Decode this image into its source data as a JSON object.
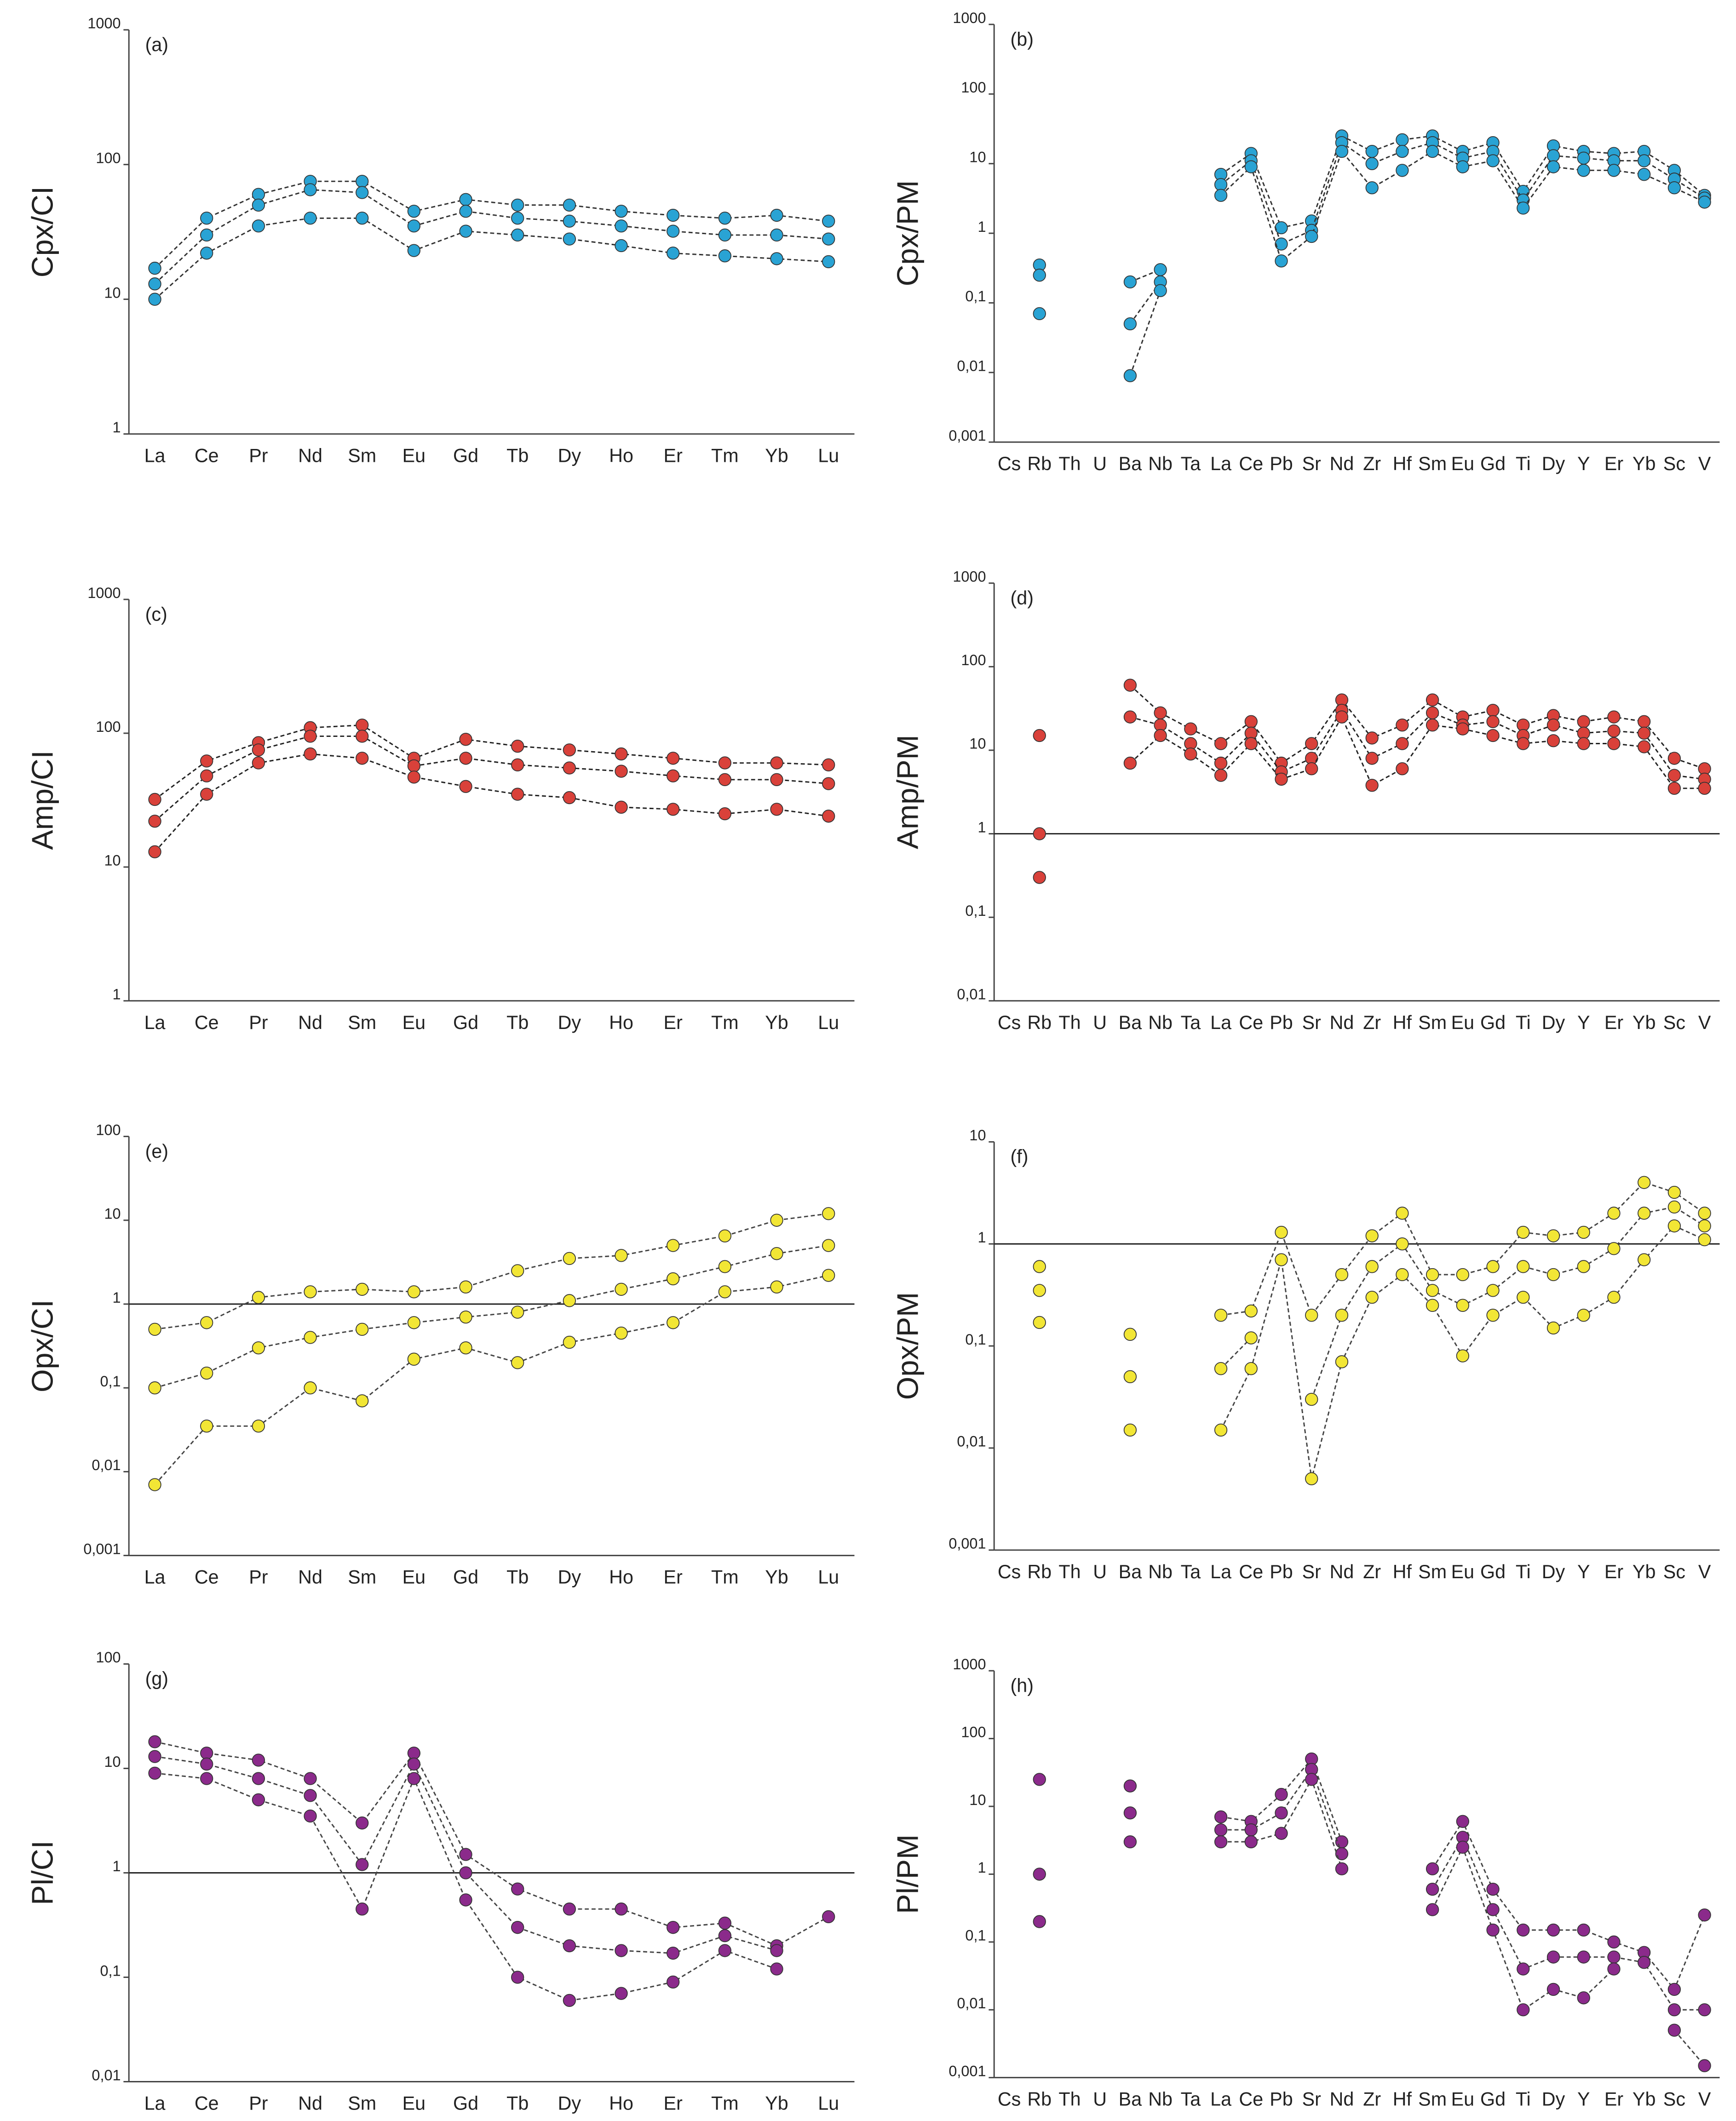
{
  "chart_data": [
    {
      "type": "line",
      "panel_label": "(a)",
      "y_label": "Cpx/CI",
      "log_scale": true,
      "color": "#29a3d4",
      "line_color": "#333333",
      "categories": [
        "La",
        "Ce",
        "Pr",
        "Nd",
        "Sm",
        "Eu",
        "Gd",
        "Tb",
        "Dy",
        "Ho",
        "Er",
        "Tm",
        "Yb",
        "Lu"
      ],
      "ylim": [
        1,
        1000
      ],
      "yticks": [
        1,
        10,
        100,
        1000
      ],
      "series": [
        {
          "color": "#29a3d4",
          "values": [
            17,
            40,
            60,
            75,
            75,
            45,
            55,
            50,
            50,
            45,
            42,
            40,
            42,
            38
          ]
        },
        {
          "color": "#29a3d4",
          "values": [
            13,
            30,
            50,
            65,
            62,
            35,
            45,
            40,
            38,
            35,
            32,
            30,
            30,
            28
          ]
        },
        {
          "color": "#29a3d4",
          "values": [
            10,
            22,
            35,
            40,
            40,
            23,
            32,
            30,
            28,
            25,
            22,
            21,
            20,
            19
          ]
        }
      ]
    },
    {
      "type": "line",
      "panel_label": "(b)",
      "y_label": "Cpx/PM",
      "log_scale": true,
      "color": "#29a3d4",
      "line_color": "#333333",
      "categories": [
        "Cs",
        "Rb",
        "Th",
        "U",
        "Ba",
        "Nb",
        "Ta",
        "La",
        "Ce",
        "Pb",
        "Sr",
        "Nd",
        "Zr",
        "Hf",
        "Sm",
        "Eu",
        "Gd",
        "Ti",
        "Dy",
        "Y",
        "Er",
        "Yb",
        "Sc",
        "V"
      ],
      "ylim": [
        0.001,
        1000
      ],
      "yticks": [
        {
          "value": 0.001,
          "label": "0,001"
        },
        {
          "value": 0.01,
          "label": "0,01"
        },
        {
          "value": 0.1,
          "label": "0,1"
        },
        1,
        10,
        100,
        1000
      ],
      "series": [
        {
          "color": "#29a3d4",
          "values": [
            null,
            0.35,
            null,
            null,
            0.2,
            0.3,
            null,
            7,
            14,
            1.2,
            1.5,
            25,
            15,
            22,
            25,
            15,
            20,
            4,
            18,
            15,
            14,
            15,
            8,
            3.5
          ]
        },
        {
          "color": "#29a3d4",
          "values": [
            null,
            0.25,
            null,
            null,
            0.05,
            0.2,
            null,
            5,
            11,
            0.7,
            1.1,
            20,
            10,
            15,
            20,
            12,
            15,
            3,
            13,
            12,
            11,
            11,
            6,
            3.2
          ]
        },
        {
          "color": "#29a3d4",
          "values": [
            null,
            0.07,
            null,
            null,
            0.009,
            0.15,
            null,
            3.5,
            9,
            0.4,
            0.9,
            15,
            4.5,
            8,
            15,
            9,
            11,
            2.3,
            9,
            8,
            8,
            7,
            4.5,
            2.8
          ]
        }
      ]
    },
    {
      "type": "line",
      "panel_label": "(c)",
      "y_label": "Amp/CI",
      "log_scale": true,
      "color": "#d9413a",
      "line_color": "#222222",
      "categories": [
        "La",
        "Ce",
        "Pr",
        "Nd",
        "Sm",
        "Eu",
        "Gd",
        "Tb",
        "Dy",
        "Ho",
        "Er",
        "Tm",
        "Yb",
        "Lu"
      ],
      "ylim": [
        1,
        1000
      ],
      "yticks": [
        1,
        10,
        100,
        1000
      ],
      "series": [
        {
          "color": "#d9413a",
          "values": [
            32,
            62,
            85,
            110,
            115,
            65,
            90,
            80,
            75,
            70,
            65,
            60,
            60,
            58
          ]
        },
        {
          "color": "#d9413a",
          "values": [
            22,
            48,
            75,
            95,
            95,
            57,
            65,
            58,
            55,
            52,
            48,
            45,
            45,
            42
          ]
        },
        {
          "color": "#d9413a",
          "values": [
            13,
            35,
            60,
            70,
            65,
            47,
            40,
            35,
            33,
            28,
            27,
            25,
            27,
            24
          ]
        }
      ]
    },
    {
      "type": "line",
      "panel_label": "(d)",
      "y_label": "Amp/PM",
      "log_scale": true,
      "color": "#d9413a",
      "line_color": "#222222",
      "hline": 1,
      "categories": [
        "Cs",
        "Rb",
        "Th",
        "U",
        "Ba",
        "Nb",
        "Ta",
        "La",
        "Ce",
        "Pb",
        "Sr",
        "Nd",
        "Zr",
        "Hf",
        "Sm",
        "Eu",
        "Gd",
        "Ti",
        "Dy",
        "Y",
        "Er",
        "Yb",
        "Sc",
        "V"
      ],
      "ylim": [
        0.01,
        1000
      ],
      "yticks": [
        {
          "value": 0.01,
          "label": "0,01"
        },
        {
          "value": 0.1,
          "label": "0,1"
        },
        1,
        10,
        100,
        1000
      ],
      "series": [
        {
          "color": "#d9413a",
          "values": [
            null,
            15,
            null,
            null,
            60,
            28,
            18,
            12,
            22,
            7,
            12,
            40,
            14,
            20,
            40,
            25,
            30,
            20,
            26,
            22,
            25,
            22,
            8,
            6
          ]
        },
        {
          "color": "#d9413a",
          "values": [
            null,
            1,
            null,
            null,
            25,
            20,
            12,
            7,
            16,
            5.5,
            8,
            30,
            8,
            12,
            28,
            20,
            22,
            15,
            20,
            16,
            17,
            16,
            5,
            4.5
          ]
        },
        {
          "color": "#d9413a",
          "values": [
            null,
            0.3,
            null,
            null,
            7,
            15,
            9,
            5,
            12,
            4.5,
            6,
            25,
            3.8,
            6,
            20,
            18,
            15,
            12,
            13,
            12,
            12,
            11,
            3.5,
            3.5
          ]
        }
      ]
    },
    {
      "type": "line",
      "panel_label": "(e)",
      "y_label": "Opx/CI",
      "log_scale": true,
      "color": "#f2e635",
      "line_color": "#444444",
      "hline": 1,
      "categories": [
        "La",
        "Ce",
        "Pr",
        "Nd",
        "Sm",
        "Eu",
        "Gd",
        "Tb",
        "Dy",
        "Ho",
        "Er",
        "Tm",
        "Yb",
        "Lu"
      ],
      "ylim": [
        0.001,
        100
      ],
      "yticks": [
        {
          "value": 0.001,
          "label": "0,001"
        },
        {
          "value": 0.01,
          "label": "0,01"
        },
        {
          "value": 0.1,
          "label": "0,1"
        },
        1,
        10,
        100
      ],
      "series": [
        {
          "color": "#f2e635",
          "values": [
            0.5,
            0.6,
            1.2,
            1.4,
            1.5,
            1.4,
            1.6,
            2.5,
            3.5,
            3.8,
            5,
            6.5,
            10,
            12
          ]
        },
        {
          "color": "#f2e635",
          "values": [
            0.1,
            0.15,
            0.3,
            0.4,
            0.5,
            0.6,
            0.7,
            0.8,
            1.1,
            1.5,
            2,
            2.8,
            4,
            5
          ]
        },
        {
          "color": "#f2e635",
          "values": [
            0.007,
            0.035,
            0.035,
            0.1,
            0.07,
            0.22,
            0.3,
            0.2,
            0.35,
            0.45,
            0.6,
            1.4,
            1.6,
            2.2
          ]
        }
      ]
    },
    {
      "type": "line",
      "panel_label": "(f)",
      "y_label": "Opx/PM",
      "log_scale": true,
      "color": "#f2e635",
      "line_color": "#444444",
      "hline": 1,
      "categories": [
        "Cs",
        "Rb",
        "Th",
        "U",
        "Ba",
        "Nb",
        "Ta",
        "La",
        "Ce",
        "Pb",
        "Sr",
        "Nd",
        "Zr",
        "Hf",
        "Sm",
        "Eu",
        "Gd",
        "Ti",
        "Dy",
        "Y",
        "Er",
        "Yb",
        "Sc",
        "V"
      ],
      "ylim": [
        0.001,
        10
      ],
      "yticks": [
        {
          "value": 0.001,
          "label": "0,001"
        },
        {
          "value": 0.01,
          "label": "0,01"
        },
        {
          "value": 0.1,
          "label": "0,1"
        },
        1,
        10
      ],
      "series": [
        {
          "color": "#f2e635",
          "values": [
            null,
            0.6,
            null,
            null,
            0.13,
            null,
            null,
            0.2,
            0.22,
            1.3,
            0.2,
            0.5,
            1.2,
            2,
            0.5,
            0.5,
            0.6,
            1.3,
            1.2,
            1.3,
            2,
            4,
            3.2,
            2
          ]
        },
        {
          "color": "#f2e635",
          "values": [
            null,
            0.35,
            null,
            null,
            0.05,
            null,
            null,
            0.06,
            0.12,
            null,
            0.03,
            0.2,
            0.6,
            1,
            0.35,
            0.25,
            0.35,
            0.6,
            0.5,
            0.6,
            0.9,
            2,
            2.3,
            1.5
          ]
        },
        {
          "color": "#f2e635",
          "values": [
            null,
            0.17,
            null,
            null,
            0.015,
            null,
            null,
            0.015,
            0.06,
            0.7,
            0.005,
            0.07,
            0.3,
            0.5,
            0.25,
            0.08,
            0.2,
            0.3,
            0.15,
            0.2,
            0.3,
            0.7,
            1.5,
            1.1
          ]
        }
      ]
    },
    {
      "type": "line",
      "panel_label": "(g)",
      "y_label": "Pl/CI",
      "log_scale": true,
      "color": "#8b2a8b",
      "line_color": "#444444",
      "hline": 1,
      "categories": [
        "La",
        "Ce",
        "Pr",
        "Nd",
        "Sm",
        "Eu",
        "Gd",
        "Tb",
        "Dy",
        "Ho",
        "Er",
        "Tm",
        "Yb",
        "Lu"
      ],
      "ylim": [
        0.01,
        100
      ],
      "yticks": [
        {
          "value": 0.01,
          "label": "0,01"
        },
        {
          "value": 0.1,
          "label": "0,1"
        },
        1,
        10,
        100
      ],
      "series": [
        {
          "color": "#8b2a8b",
          "values": [
            18,
            14,
            12,
            8,
            3,
            14,
            1.5,
            0.7,
            0.45,
            0.45,
            0.3,
            0.33,
            0.2,
            0.38
          ]
        },
        {
          "color": "#8b2a8b",
          "values": [
            13,
            11,
            8,
            5.5,
            1.2,
            11,
            1,
            0.3,
            0.2,
            0.18,
            0.17,
            0.25,
            0.18,
            null
          ]
        },
        {
          "color": "#8b2a8b",
          "values": [
            9,
            8,
            5,
            3.5,
            0.45,
            8,
            0.55,
            0.1,
            0.06,
            0.07,
            0.09,
            0.18,
            0.12,
            null
          ]
        }
      ]
    },
    {
      "type": "line",
      "panel_label": "(h)",
      "y_label": "Pl/PM",
      "log_scale": true,
      "color": "#8b2a8b",
      "line_color": "#444444",
      "categories": [
        "Cs",
        "Rb",
        "Th",
        "U",
        "Ba",
        "Nb",
        "Ta",
        "La",
        "Ce",
        "Pb",
        "Sr",
        "Nd",
        "Zr",
        "Hf",
        "Sm",
        "Eu",
        "Gd",
        "Ti",
        "Dy",
        "Y",
        "Er",
        "Yb",
        "Sc",
        "V"
      ],
      "ylim": [
        0.001,
        1000
      ],
      "yticks": [
        {
          "value": 0.001,
          "label": "0,001"
        },
        {
          "value": 0.01,
          "label": "0,01"
        },
        {
          "value": 0.1,
          "label": "0,1"
        },
        1,
        10,
        100,
        1000
      ],
      "series": [
        {
          "color": "#8b2a8b",
          "values": [
            null,
            25,
            null,
            null,
            20,
            null,
            null,
            7,
            6,
            15,
            50,
            3,
            null,
            null,
            1.2,
            6,
            0.6,
            0.15,
            0.15,
            0.15,
            0.1,
            0.07,
            0.02,
            0.25
          ]
        },
        {
          "color": "#8b2a8b",
          "values": [
            null,
            1,
            null,
            null,
            8,
            null,
            null,
            4.5,
            4.5,
            8,
            35,
            2,
            null,
            null,
            0.6,
            3.5,
            0.3,
            0.04,
            0.06,
            0.06,
            0.06,
            0.05,
            0.01,
            0.01
          ]
        },
        {
          "color": "#8b2a8b",
          "values": [
            null,
            0.2,
            null,
            null,
            3,
            null,
            null,
            3,
            3,
            4,
            25,
            1.2,
            null,
            null,
            0.3,
            2.5,
            0.15,
            0.01,
            0.02,
            0.015,
            0.04,
            null,
            0.005,
            0.0015
          ]
        }
      ]
    }
  ]
}
